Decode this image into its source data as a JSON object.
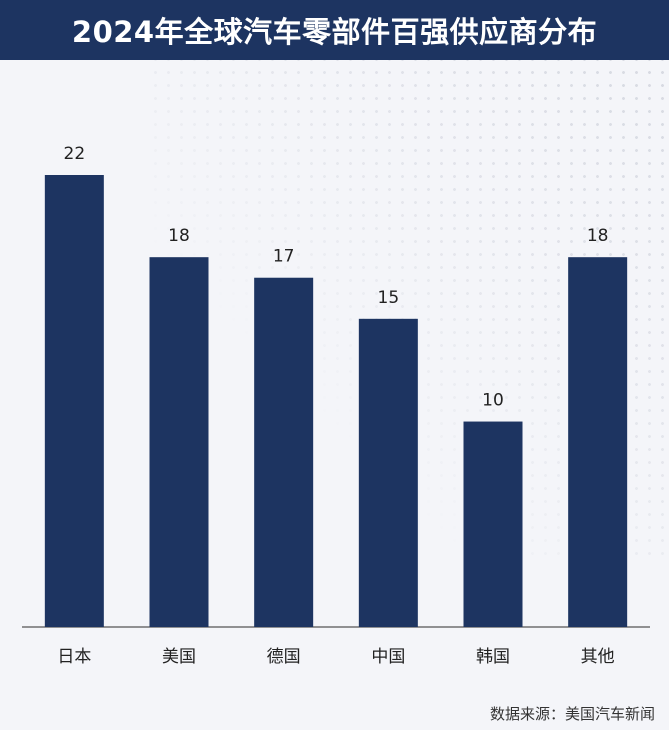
{
  "chart_data": {
    "type": "bar",
    "title": "2024年全球汽车零部件百强供应商分布",
    "categories": [
      "日本",
      "美国",
      "德国",
      "中国",
      "韩国",
      "其他"
    ],
    "values": [
      22,
      18,
      17,
      15,
      10,
      18
    ],
    "ylim": [
      0,
      22
    ],
    "grid": false,
    "legend": "none",
    "bar_color": "#1d3461",
    "source": "数据来源：美国汽车新闻"
  }
}
